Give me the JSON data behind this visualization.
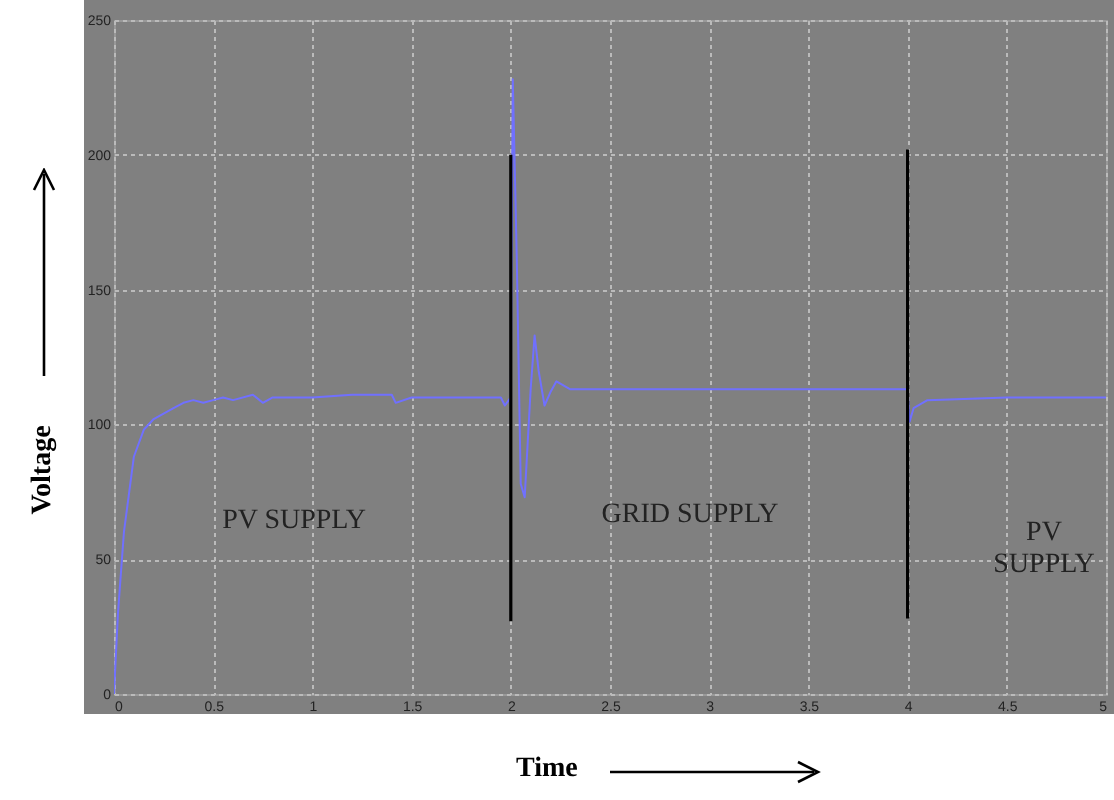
{
  "chart_data": {
    "type": "line",
    "xlabel": "Time",
    "ylabel": "Voltage",
    "xlim": [
      0,
      5
    ],
    "xticks": [
      0,
      0.5,
      1,
      1.5,
      2,
      2.5,
      3,
      3.5,
      4,
      4.5,
      5
    ],
    "ylim": [
      0,
      250
    ],
    "yticks": [
      0,
      50,
      100,
      150,
      200,
      250
    ],
    "grid": true,
    "series": [
      {
        "color": "#7070ff",
        "x": [
          0,
          0.02,
          0.05,
          0.1,
          0.15,
          0.2,
          0.25,
          0.3,
          0.35,
          0.4,
          0.45,
          0.5,
          0.55,
          0.6,
          0.7,
          0.75,
          0.8,
          0.9,
          1.0,
          1.2,
          1.4,
          1.42,
          1.5,
          1.7,
          1.95,
          1.97,
          2.0,
          2.01,
          2.03,
          2.05,
          2.07,
          2.1,
          2.12,
          2.14,
          2.17,
          2.2,
          2.23,
          2.3,
          3.0,
          4.0,
          4.01,
          4.03,
          4.1,
          4.5,
          5.0
        ],
        "values": [
          0,
          30,
          60,
          88,
          98,
          102,
          104,
          106,
          108,
          109,
          108,
          109,
          110,
          109,
          111,
          108,
          110,
          110,
          110,
          111,
          111,
          108,
          110,
          110,
          110,
          107,
          110,
          228,
          162,
          78,
          73,
          113,
          133,
          120,
          107,
          112,
          116,
          113,
          113,
          113,
          101,
          106,
          109,
          110,
          110
        ]
      },
      {
        "color": "#000000",
        "x": [
          2,
          2
        ],
        "values": [
          27,
          200
        ]
      },
      {
        "color": "#000000",
        "x": [
          4,
          4
        ],
        "values": [
          28,
          202
        ]
      }
    ],
    "annotations": [
      "PV SUPPLY",
      "GRID SUPPLY",
      "PV\nSUPPLY"
    ]
  }
}
